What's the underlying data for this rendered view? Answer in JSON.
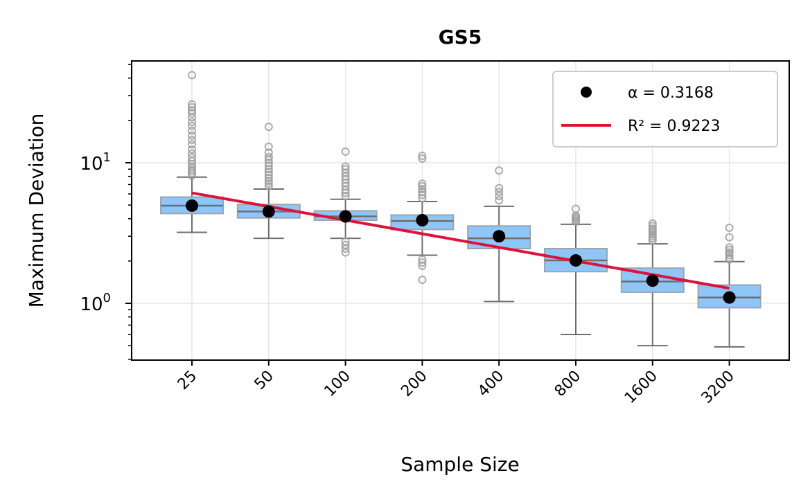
{
  "chart_data": {
    "type": "box",
    "title": "GS5",
    "xlabel": "Sample Size",
    "ylabel": "Maximum Deviation",
    "yscale": "log",
    "ylim": [
      0.4,
      55
    ],
    "grid": true,
    "legend_position": "top-right",
    "categories": [
      "25",
      "50",
      "100",
      "200",
      "400",
      "800",
      "1600",
      "3200"
    ],
    "box_color": "#8ec6f8",
    "box_edge_color": "#9aa5b0",
    "whisker_color": "#6e6e6e",
    "mean_color": "#000000",
    "fit_color": "#dc143c",
    "boxes": [
      {
        "whislo": 3.2,
        "q1": 4.35,
        "med": 4.95,
        "q3": 5.7,
        "whishi": 7.9,
        "mean": 4.95,
        "fliers": [
          8.1,
          8.4,
          8.7,
          9.0,
          9.4,
          9.8,
          10.3,
          10.9,
          11.6,
          12.4,
          13.5,
          14.5,
          15.6,
          16.9,
          18.3,
          19.5,
          21.0,
          22.5,
          23.6,
          24.8,
          26.0,
          42.0
        ]
      },
      {
        "whislo": 2.9,
        "q1": 4.05,
        "med": 4.5,
        "q3": 5.05,
        "whishi": 6.5,
        "mean": 4.5,
        "fliers": [
          6.8,
          7.1,
          7.4,
          7.8,
          8.2,
          8.6,
          9.0,
          9.5,
          10.0,
          10.5,
          11.0,
          11.8,
          13.0,
          18.0
        ]
      },
      {
        "whislo": 2.9,
        "q1": 3.9,
        "med": 4.15,
        "q3": 4.55,
        "whishi": 5.5,
        "mean": 4.15,
        "fliers": [
          2.3,
          2.45,
          2.6,
          2.75,
          5.8,
          6.1,
          6.4,
          6.8,
          7.2,
          7.6,
          8.0,
          8.5,
          9.0,
          9.4,
          12.0
        ]
      },
      {
        "whislo": 2.2,
        "q1": 3.35,
        "med": 3.85,
        "q3": 4.25,
        "whishi": 5.3,
        "mean": 3.9,
        "fliers": [
          1.47,
          1.85,
          1.95,
          2.05,
          5.6,
          5.9,
          6.2,
          6.5,
          6.8,
          7.1,
          10.7,
          11.2
        ]
      },
      {
        "whislo": 1.03,
        "q1": 2.45,
        "med": 2.9,
        "q3": 3.55,
        "whishi": 4.9,
        "mean": 3.0,
        "fliers": [
          5.4,
          5.8,
          6.2,
          6.6,
          8.8
        ]
      },
      {
        "whislo": 0.6,
        "q1": 1.68,
        "med": 2.02,
        "q3": 2.45,
        "whishi": 3.65,
        "mean": 2.02,
        "fliers": [
          3.8,
          3.9,
          4.0,
          4.1,
          4.2,
          4.7
        ]
      },
      {
        "whislo": 0.5,
        "q1": 1.2,
        "med": 1.43,
        "q3": 1.78,
        "whishi": 2.65,
        "mean": 1.45,
        "fliers": [
          2.8,
          2.9,
          3.0,
          3.1,
          3.2,
          3.3,
          3.4,
          3.55,
          3.7
        ]
      },
      {
        "whislo": 0.49,
        "q1": 0.93,
        "med": 1.1,
        "q3": 1.35,
        "whishi": 1.98,
        "mean": 1.1,
        "fliers": [
          2.05,
          2.1,
          2.2,
          2.3,
          2.4,
          2.5,
          2.95,
          3.45
        ]
      }
    ],
    "fit_line": {
      "x_start": "25",
      "y_start": 6.1,
      "x_end": "3200",
      "y_end": 1.28
    },
    "yticks": [
      {
        "value": 1,
        "base": "10",
        "exp": "0"
      },
      {
        "value": 10,
        "base": "10",
        "exp": "1"
      }
    ],
    "legend": [
      {
        "marker": "dot",
        "label": "α = 0.3168"
      },
      {
        "marker": "line",
        "label": "R² = 0.9223"
      }
    ]
  }
}
